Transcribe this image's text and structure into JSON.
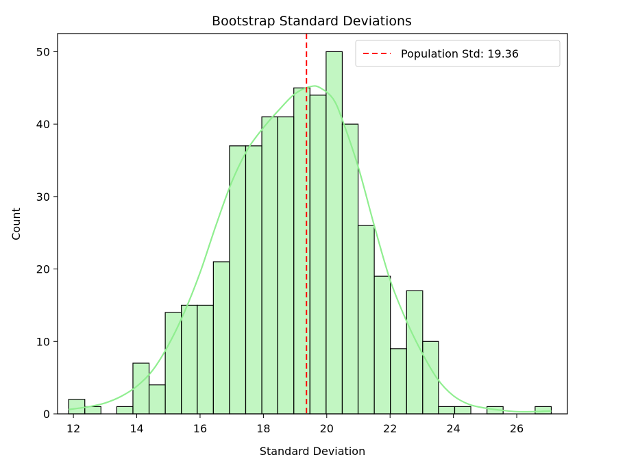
{
  "chart_data": {
    "type": "bar",
    "title": "Bootstrap Standard Deviations",
    "xlabel": "Standard Deviation",
    "ylabel": "Count",
    "xlim": [
      11.5,
      27.6
    ],
    "ylim": [
      0,
      52.5
    ],
    "xticks": [
      12,
      14,
      16,
      18,
      20,
      22,
      24,
      26
    ],
    "yticks": [
      0,
      10,
      20,
      30,
      40,
      50
    ],
    "bin_edges": [
      11.85,
      12.36,
      12.87,
      13.37,
      13.88,
      14.39,
      14.9,
      15.41,
      15.91,
      16.42,
      16.93,
      17.44,
      17.95,
      18.45,
      18.96,
      19.47,
      19.98,
      20.49,
      20.99,
      21.5,
      22.01,
      22.52,
      23.03,
      23.53,
      24.04,
      24.55,
      25.06,
      25.57,
      26.07,
      26.58,
      27.09
    ],
    "counts": [
      2,
      1,
      0,
      1,
      7,
      4,
      14,
      15,
      15,
      21,
      37,
      37,
      41,
      41,
      45,
      44,
      50,
      40,
      26,
      19,
      9,
      17,
      10,
      1,
      1,
      0,
      1,
      0,
      0,
      1
    ],
    "bar_color": "#90EE90",
    "kde": {
      "x": [
        11.85,
        12.5,
        13.0,
        13.5,
        14.0,
        14.5,
        15.0,
        15.5,
        16.0,
        16.5,
        17.0,
        17.5,
        18.0,
        18.5,
        19.0,
        19.5,
        19.8,
        20.2,
        20.5,
        21.0,
        21.5,
        22.0,
        22.5,
        23.0,
        23.5,
        24.0,
        24.5,
        25.0,
        25.5,
        26.0,
        26.5,
        27.09
      ],
      "y": [
        0.6,
        1.0,
        1.5,
        2.4,
        3.8,
        6.0,
        9.5,
        14.0,
        19.5,
        26.0,
        32.0,
        36.5,
        39.5,
        42.0,
        44.2,
        45.2,
        45.0,
        43.5,
        40.5,
        34.0,
        26.0,
        18.5,
        13.0,
        8.5,
        4.8,
        2.5,
        1.3,
        0.8,
        0.5,
        0.3,
        0.3,
        0.4
      ],
      "color": "#90EE90"
    },
    "reference_line": {
      "x": 19.36,
      "label": "Population Std: 19.36",
      "color": "#ff0000",
      "style": "dashed"
    },
    "legend": {
      "position": "top-right",
      "entries": [
        "Population Std: 19.36"
      ]
    },
    "grid": false
  }
}
